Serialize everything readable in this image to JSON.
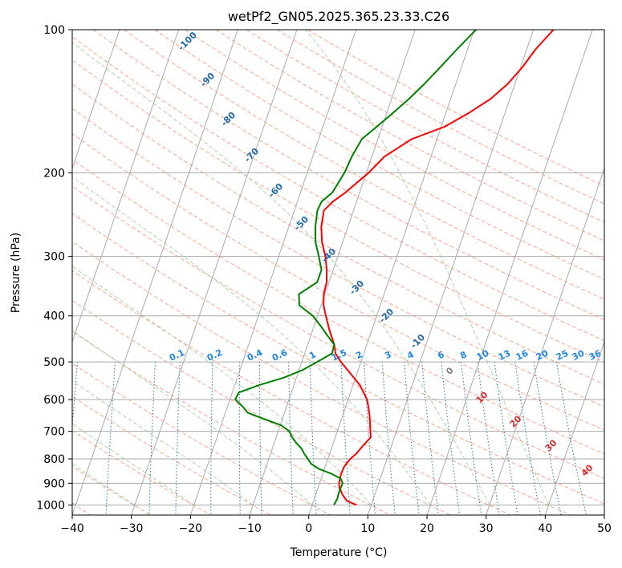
{
  "chart_data": {
    "type": "line",
    "title": "wetPf2_GN05.2025.365.23.33.C26",
    "xlabel": "Temperature (°C)",
    "ylabel": "Pressure (hPa)",
    "xlim": [
      -40,
      50
    ],
    "ylim": [
      1050,
      100
    ],
    "y_scale": "log",
    "x_ticks": [
      -40,
      -30,
      -20,
      -10,
      0,
      10,
      20,
      30,
      40,
      50
    ],
    "x_tick_labels": [
      "−40",
      "−30",
      "−20",
      "−10",
      "0",
      "10",
      "20",
      "30",
      "40",
      "50"
    ],
    "y_ticks": [
      1000,
      900,
      800,
      700,
      600,
      500,
      400,
      300,
      200,
      100
    ],
    "y_tick_labels": [
      "1000",
      "900",
      "800",
      "700",
      "600",
      "500",
      "400",
      "300",
      "200",
      "100"
    ],
    "grid": true,
    "series": [
      {
        "color": "#ff0000",
        "points": [
          [
            1000,
            7.5
          ],
          [
            980,
            5.6
          ],
          [
            950,
            4.5
          ],
          [
            920,
            3.6
          ],
          [
            900,
            3.3
          ],
          [
            860,
            3.1
          ],
          [
            830,
            3.2
          ],
          [
            800,
            3.8
          ],
          [
            780,
            4.5
          ],
          [
            750,
            5.2
          ],
          [
            720,
            6.0
          ],
          [
            700,
            5.6
          ],
          [
            650,
            4.6
          ],
          [
            620,
            3.8
          ],
          [
            600,
            3.2
          ],
          [
            560,
            1.2
          ],
          [
            520,
            -1.8
          ],
          [
            500,
            -3.4
          ],
          [
            480,
            -4.8
          ],
          [
            460,
            -5.5
          ],
          [
            430,
            -7.1
          ],
          [
            400,
            -8.6
          ],
          [
            380,
            -9.6
          ],
          [
            360,
            -10.2
          ],
          [
            340,
            -10.4
          ],
          [
            320,
            -11.1
          ],
          [
            300,
            -12.1
          ],
          [
            280,
            -13.5
          ],
          [
            260,
            -14.5
          ],
          [
            240,
            -15.0
          ],
          [
            230,
            -14.0
          ],
          [
            220,
            -12.4
          ],
          [
            200,
            -9.6
          ],
          [
            185,
            -7.9
          ],
          [
            170,
            -4.3
          ],
          [
            160,
            0.6
          ],
          [
            150,
            3.8
          ],
          [
            140,
            6.7
          ],
          [
            130,
            8.8
          ],
          [
            120,
            10.3
          ],
          [
            110,
            11.5
          ],
          [
            100,
            13.4
          ]
        ]
      },
      {
        "color": "#008000",
        "points": [
          [
            1000,
            3.7
          ],
          [
            970,
            3.9
          ],
          [
            940,
            3.8
          ],
          [
            900,
            3.9
          ],
          [
            880,
            3.3
          ],
          [
            860,
            1.5
          ],
          [
            840,
            -0.9
          ],
          [
            820,
            -2.5
          ],
          [
            800,
            -3.4
          ],
          [
            780,
            -4.3
          ],
          [
            760,
            -5.1
          ],
          [
            740,
            -6.3
          ],
          [
            720,
            -7.3
          ],
          [
            700,
            -8.1
          ],
          [
            680,
            -9.8
          ],
          [
            660,
            -13.0
          ],
          [
            640,
            -16.2
          ],
          [
            620,
            -17.5
          ],
          [
            600,
            -19.1
          ],
          [
            580,
            -18.9
          ],
          [
            560,
            -16.0
          ],
          [
            540,
            -12.2
          ],
          [
            520,
            -9.4
          ],
          [
            500,
            -7.4
          ],
          [
            480,
            -5.4
          ],
          [
            460,
            -5.5
          ],
          [
            440,
            -7.2
          ],
          [
            420,
            -8.9
          ],
          [
            400,
            -10.8
          ],
          [
            380,
            -13.7
          ],
          [
            360,
            -14.4
          ],
          [
            340,
            -12.0
          ],
          [
            320,
            -12.0
          ],
          [
            300,
            -13.2
          ],
          [
            280,
            -14.6
          ],
          [
            260,
            -15.5
          ],
          [
            240,
            -16.1
          ],
          [
            230,
            -15.9
          ],
          [
            220,
            -14.6
          ],
          [
            200,
            -13.7
          ],
          [
            185,
            -13.4
          ],
          [
            170,
            -12.7
          ],
          [
            160,
            -10.9
          ],
          [
            150,
            -9.0
          ],
          [
            140,
            -7.1
          ],
          [
            130,
            -5.3
          ],
          [
            120,
            -3.6
          ],
          [
            110,
            -1.8
          ],
          [
            100,
            0.3
          ]
        ]
      }
    ],
    "dry_adiabat_labels": [
      "-100",
      "-90",
      "-80",
      "-70",
      "-60",
      "-50",
      "-40",
      "-30",
      "-20",
      "-10"
    ],
    "moist_adiabat_labels": [
      "0",
      "10",
      "20",
      "30",
      "40"
    ],
    "mixing_ratio_labels": [
      "0.1",
      "0.2",
      "0.4",
      "0.6",
      "1",
      "1.5",
      "2",
      "3",
      "4",
      "6",
      "8",
      "10",
      "13",
      "16",
      "20",
      "25",
      "30",
      "36"
    ],
    "colors": {
      "isotherm": "#aaaaaa",
      "isobar": "#aaaaaa",
      "dry_adiabat": "#ffa385",
      "moist_adiabat": "#a9d6a5",
      "mixing_ratio": "#1f77b4",
      "dry_label": "#2169a8",
      "mixing_label": "#1e88e5",
      "moist_label_cold": "#808080",
      "moist_label_warm": "#d32f2f",
      "background_theta": "#d6b998"
    }
  }
}
